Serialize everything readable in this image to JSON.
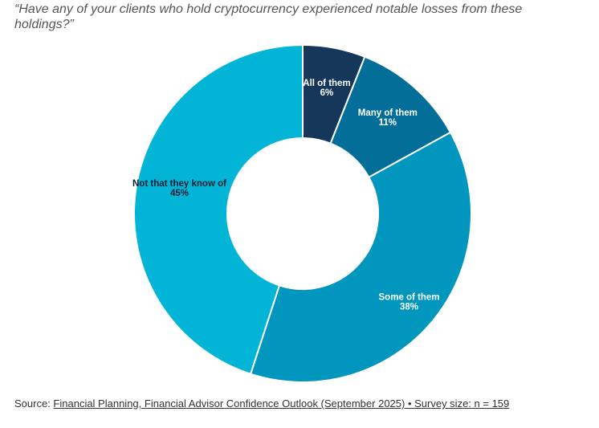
{
  "question": "“Have any of your clients who hold cryptocurrency experienced notable losses from these holdings?”",
  "chart_data": {
    "type": "pie",
    "donut": true,
    "categories": [
      "All of them",
      "Many of them",
      "Some of them",
      "Not that they know of"
    ],
    "values": [
      6,
      11,
      38,
      45
    ],
    "value_labels": [
      "6%",
      "11%",
      "38%",
      "45%"
    ],
    "colors": [
      "#15375a",
      "#036f98",
      "#0196bd",
      "#02b5d7"
    ],
    "label_colors": [
      "#ffffff",
      "#ffffff",
      "#ffffff",
      "#0f1f2e"
    ],
    "legend": "none"
  },
  "source": {
    "prefix": "Source: ",
    "link_text": "Financial Planning, Financial Advisor Confidence Outlook (September 2025) • Survey size: n = 159"
  }
}
